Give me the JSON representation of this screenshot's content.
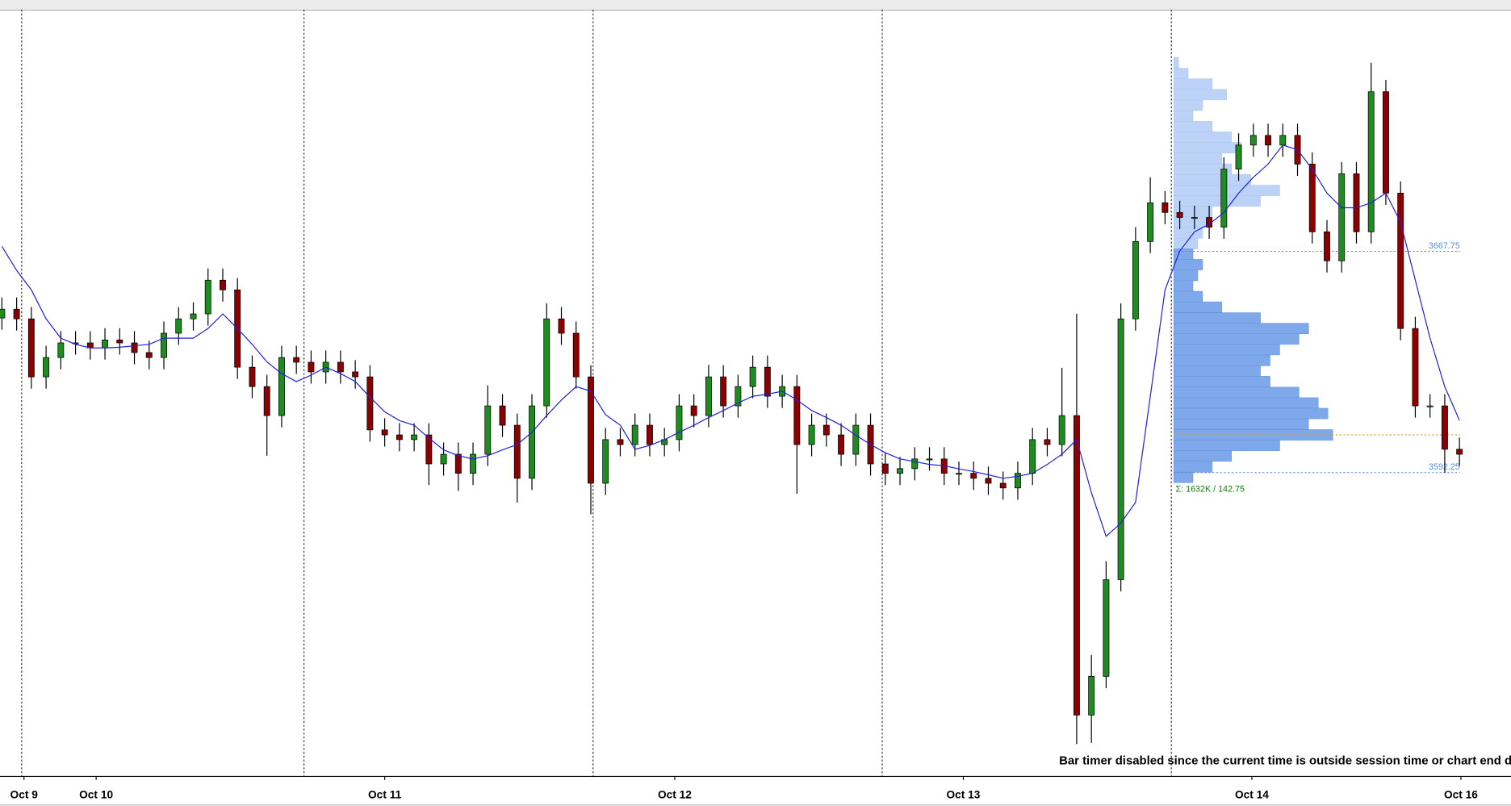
{
  "chart_data": {
    "type": "candlestick",
    "x": [
      0,
      1,
      2,
      3,
      4,
      5,
      6,
      7,
      8,
      9,
      10,
      11,
      12,
      13,
      14,
      15,
      16,
      17,
      18,
      19,
      20,
      21,
      22,
      23,
      24,
      25,
      26,
      27,
      28,
      29,
      30,
      31,
      32,
      33,
      34,
      35,
      36,
      37,
      38,
      39,
      40,
      41,
      42,
      43,
      44,
      45,
      46,
      47,
      48,
      49,
      50,
      51,
      52,
      53,
      54,
      55,
      56,
      57,
      58,
      59,
      60,
      61,
      62,
      63,
      64,
      65,
      66,
      67,
      68,
      69,
      70,
      71,
      72,
      73,
      74,
      75,
      76,
      77,
      78,
      79,
      80,
      81,
      82,
      83,
      84,
      85,
      86,
      87,
      88,
      89,
      90,
      91,
      92,
      93,
      94,
      95,
      96,
      97,
      98,
      99
    ],
    "open": [
      3645.0,
      3648.0,
      3644.7,
      3624.9,
      3631.5,
      3636.5,
      3636.5,
      3634.8,
      3637.5,
      3636.5,
      3633.2,
      3631.5,
      3639.8,
      3644.7,
      3646.4,
      3657.9,
      3654.6,
      3628.2,
      3621.6,
      3611.7,
      3631.5,
      3629.9,
      3626.6,
      3629.9,
      3626.6,
      3624.9,
      3606.8,
      3605.1,
      3603.5,
      3605.1,
      3595.2,
      3598.5,
      3592.0,
      3598.5,
      3615.0,
      3608.4,
      3590.3,
      3615.0,
      3644.7,
      3639.8,
      3624.9,
      3588.6,
      3603.5,
      3601.8,
      3608.4,
      3601.8,
      3603.5,
      3615.0,
      3611.7,
      3624.9,
      3615.0,
      3621.6,
      3628.2,
      3618.3,
      3621.6,
      3601.8,
      3608.4,
      3605.1,
      3598.5,
      3608.4,
      3595.2,
      3592.0,
      3593.6,
      3596.9,
      3596.9,
      3592.0,
      3592.0,
      3590.3,
      3588.6,
      3587.0,
      3592.0,
      3603.5,
      3601.8,
      3611.7,
      3509.5,
      3522.7,
      3555.7,
      3644.7,
      3671.1,
      3684.3,
      3681.0,
      3679.3,
      3679.3,
      3676.0,
      3695.8,
      3704.0,
      3707.3,
      3704.0,
      3707.3,
      3697.5,
      3674.4,
      3664.5,
      3694.2,
      3674.4,
      3722.2,
      3687.6,
      3641.4,
      3615.0,
      3615.0,
      3600.2
    ],
    "high": [
      3652.0,
      3652.0,
      3648.7,
      3635.5,
      3640.5,
      3640.5,
      3640.5,
      3641.5,
      3641.5,
      3640.5,
      3637.2,
      3643.8,
      3648.7,
      3650.4,
      3661.9,
      3661.9,
      3658.6,
      3632.2,
      3625.6,
      3635.5,
      3635.5,
      3633.9,
      3633.9,
      3633.9,
      3630.6,
      3628.9,
      3610.8,
      3609.1,
      3609.1,
      3609.1,
      3602.5,
      3602.5,
      3602.5,
      3622.0,
      3619.0,
      3612.4,
      3619.0,
      3650.0,
      3648.7,
      3643.8,
      3628.9,
      3607.5,
      3607.5,
      3612.4,
      3612.4,
      3607.5,
      3619.0,
      3619.0,
      3629.0,
      3628.9,
      3625.6,
      3632.2,
      3632.2,
      3625.6,
      3625.6,
      3612.4,
      3612.4,
      3609.1,
      3612.4,
      3612.4,
      3599.2,
      3597.6,
      3600.9,
      3600.9,
      3600.9,
      3596.0,
      3596.0,
      3594.3,
      3592.6,
      3596.0,
      3607.5,
      3607.5,
      3628.0,
      3646.4,
      3530.0,
      3562.0,
      3650.0,
      3676.0,
      3693.0,
      3688.3,
      3685.0,
      3683.3,
      3683.3,
      3699.8,
      3708.0,
      3711.3,
      3711.3,
      3711.3,
      3711.3,
      3701.5,
      3678.4,
      3698.2,
      3698.2,
      3732.1,
      3726.2,
      3691.6,
      3645.4,
      3619.0,
      3619.0,
      3604.2
    ],
    "low": [
      3641.0,
      3640.7,
      3620.9,
      3620.9,
      3627.5,
      3632.5,
      3630.8,
      3630.8,
      3632.5,
      3629.2,
      3627.5,
      3627.5,
      3635.8,
      3640.7,
      3642.4,
      3650.6,
      3624.2,
      3617.6,
      3598.0,
      3607.7,
      3625.9,
      3622.6,
      3622.6,
      3622.6,
      3620.9,
      3602.8,
      3601.1,
      3599.5,
      3599.5,
      3588.0,
      3591.2,
      3586.0,
      3588.0,
      3594.5,
      3604.4,
      3582.0,
      3586.3,
      3611.0,
      3635.8,
      3620.9,
      3578.0,
      3584.6,
      3597.8,
      3597.8,
      3597.8,
      3597.8,
      3599.5,
      3607.7,
      3607.7,
      3611.0,
      3611.0,
      3617.6,
      3614.3,
      3614.3,
      3585.0,
      3597.8,
      3601.1,
      3594.5,
      3594.5,
      3591.2,
      3588.0,
      3588.0,
      3589.6,
      3592.9,
      3588.0,
      3588.0,
      3586.3,
      3584.6,
      3583.0,
      3583.0,
      3588.0,
      3597.8,
      3597.8,
      3499.6,
      3500.0,
      3518.7,
      3551.7,
      3640.7,
      3667.1,
      3677.0,
      3675.3,
      3675.3,
      3672.0,
      3672.0,
      3691.8,
      3700.0,
      3700.0,
      3700.0,
      3693.5,
      3670.4,
      3660.5,
      3660.5,
      3670.4,
      3670.4,
      3683.6,
      3637.4,
      3611.0,
      3611.0,
      3592.2,
      3594.5
    ],
    "close": [
      3648.0,
      3644.7,
      3624.9,
      3631.5,
      3636.5,
      3636.5,
      3634.8,
      3637.5,
      3636.5,
      3633.2,
      3631.5,
      3639.8,
      3644.7,
      3646.4,
      3657.9,
      3654.6,
      3628.2,
      3621.6,
      3611.7,
      3631.5,
      3629.9,
      3626.6,
      3629.9,
      3626.6,
      3624.9,
      3606.8,
      3605.1,
      3603.5,
      3605.1,
      3595.2,
      3598.5,
      3592.0,
      3598.5,
      3615.0,
      3608.4,
      3590.3,
      3615.0,
      3644.7,
      3639.8,
      3624.9,
      3588.6,
      3603.5,
      3601.8,
      3608.4,
      3601.8,
      3603.5,
      3615.0,
      3611.7,
      3624.9,
      3615.0,
      3621.6,
      3628.2,
      3618.3,
      3621.6,
      3601.8,
      3608.4,
      3605.1,
      3598.5,
      3608.4,
      3595.2,
      3592.0,
      3593.6,
      3596.9,
      3596.9,
      3592.0,
      3592.0,
      3590.3,
      3588.6,
      3587.0,
      3592.0,
      3603.5,
      3601.8,
      3611.7,
      3509.5,
      3522.7,
      3555.7,
      3644.7,
      3671.1,
      3684.3,
      3681.0,
      3679.3,
      3679.3,
      3676.0,
      3695.8,
      3704.0,
      3707.3,
      3704.0,
      3707.3,
      3697.5,
      3674.4,
      3664.5,
      3694.2,
      3674.4,
      3722.2,
      3687.6,
      3641.4,
      3615.0,
      3615.0,
      3600.2,
      3598.5
    ],
    "up_color": "#1e8c1e",
    "down_color": "#8b0000",
    "wick_color": "#000000",
    "ma": {
      "color": "#1f1fe0",
      "values": [
        3669.4,
        3661.2,
        3654.6,
        3644.7,
        3638.1,
        3636.0,
        3634.8,
        3634.8,
        3635.0,
        3635.5,
        3636.0,
        3638.1,
        3638.1,
        3638.1,
        3641.4,
        3646.4,
        3641.4,
        3636.0,
        3630.0,
        3626.0,
        3623.3,
        3625.5,
        3628.2,
        3626.0,
        3623.3,
        3618.0,
        3613.0,
        3610.0,
        3608.4,
        3604.0,
        3600.0,
        3598.0,
        3596.9,
        3598.0,
        3600.0,
        3601.8,
        3606.0,
        3611.7,
        3617.0,
        3621.6,
        3620.0,
        3612.0,
        3608.4,
        3600.2,
        3601.5,
        3603.5,
        3606.0,
        3608.4,
        3611.0,
        3613.4,
        3616.0,
        3618.3,
        3619.0,
        3620.0,
        3617.0,
        3613.4,
        3611.0,
        3608.4,
        3605.0,
        3601.8,
        3599.0,
        3596.9,
        3596.0,
        3595.0,
        3594.6,
        3593.5,
        3592.6,
        3591.5,
        3590.3,
        3591.0,
        3592.0,
        3595.0,
        3598.5,
        3603.5,
        3585.4,
        3570.5,
        3575.0,
        3582.1,
        3618.3,
        3654.6,
        3667.8,
        3674.4,
        3677.0,
        3681.0,
        3687.6,
        3693.0,
        3697.5,
        3704.0,
        3702.4,
        3695.8,
        3687.6,
        3682.6,
        3682.6,
        3684.3,
        3687.6,
        3677.7,
        3657.9,
        3638.1,
        3621.6,
        3610.1
      ]
    },
    "xlim": [
      -0.13,
      102.5
    ],
    "ylim": [
      3488.7,
      3750.2
    ],
    "xticks": [
      {
        "value": 1.5,
        "label": "Oct 9"
      },
      {
        "value": 6.4,
        "label": "Oct 10"
      },
      {
        "value": 26.0,
        "label": "Oct 11"
      },
      {
        "value": 45.7,
        "label": "Oct 12"
      },
      {
        "value": 65.3,
        "label": "Oct 13"
      },
      {
        "value": 84.9,
        "label": "Oct 14"
      },
      {
        "value": 99.1,
        "label": "Oct 16"
      }
    ],
    "profile": {
      "prices": [
        3732.1,
        3728.4,
        3724.8,
        3721.2,
        3717.6,
        3713.9,
        3710.3,
        3706.7,
        3703.1,
        3699.4,
        3695.8,
        3692.2,
        3688.5,
        3684.9,
        3681.3,
        3677.7,
        3674.0,
        3670.4,
        3666.8,
        3663.2,
        3659.5,
        3655.9,
        3652.3,
        3648.7,
        3645.0,
        3641.4,
        3637.8,
        3634.2,
        3630.5,
        3626.9,
        3623.3,
        3619.6,
        3616.0,
        3612.4,
        3608.8,
        3605.1,
        3601.5,
        3597.9,
        3594.2,
        3590.6
      ],
      "volumes": [
        5,
        15,
        40,
        55,
        30,
        20,
        40,
        60,
        70,
        50,
        60,
        80,
        110,
        90,
        40,
        35,
        30,
        25,
        20,
        30,
        25,
        20,
        30,
        50,
        90,
        140,
        130,
        110,
        100,
        90,
        100,
        130,
        150,
        160,
        140,
        165,
        110,
        60,
        40,
        20
      ],
      "upper_color": "#bcd3f7",
      "lower_color": "#7ea8ea",
      "summary": "Σ: 1632K / 142.75",
      "summary_color": "#1a7a1a"
    },
    "levels": [
      3667.75,
      3592.25
    ],
    "level_color": "#5b8fd9",
    "poc": 3605.1,
    "poc_color": "#e0a020",
    "annotation": "Bar timer disabled since the current time is outside session time or chart end d"
  }
}
